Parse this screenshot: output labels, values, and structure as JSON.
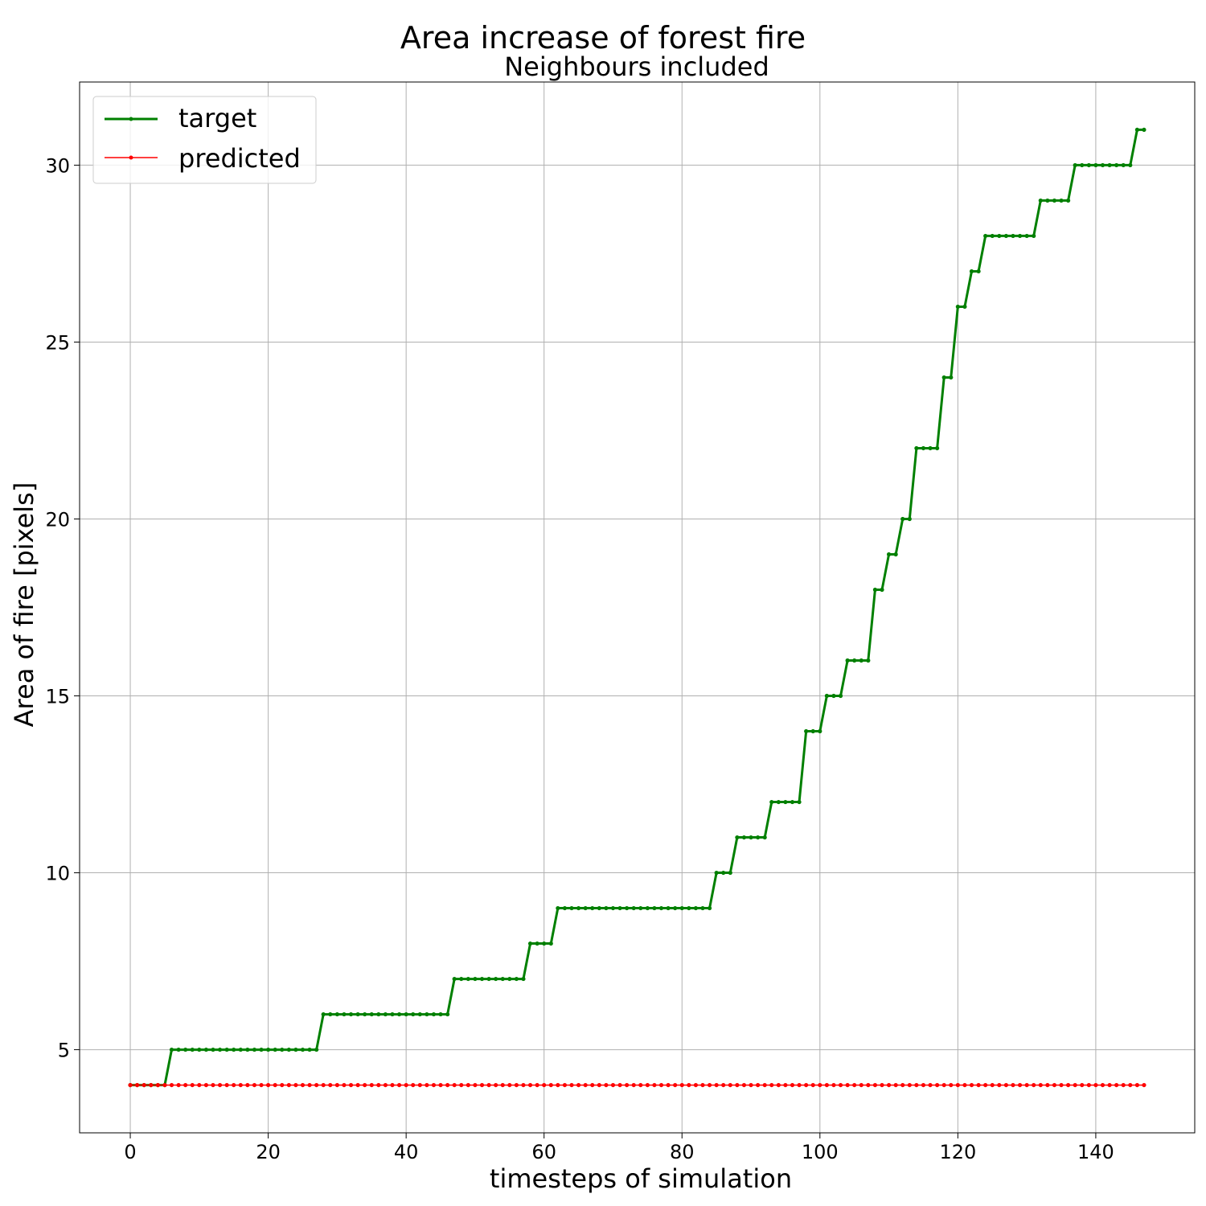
{
  "chart_data": {
    "type": "line",
    "suptitle": "Area increase of forest fire",
    "title": "Neighbours included",
    "xlabel": "timesteps of simulation",
    "ylabel": "Area of fire [pixels]",
    "xlim": [
      -7.35,
      154.35
    ],
    "ylim": [
      2.65,
      32.35
    ],
    "xticks": [
      0,
      20,
      40,
      60,
      80,
      100,
      120,
      140
    ],
    "yticks": [
      5,
      10,
      15,
      20,
      25,
      30
    ],
    "grid": true,
    "legend_position": "upper-left",
    "series": [
      {
        "name": "target",
        "color": "#008000",
        "runs": [
          [
            0,
            5,
            4
          ],
          [
            6,
            27,
            5
          ],
          [
            28,
            46,
            6
          ],
          [
            47,
            57,
            7
          ],
          [
            58,
            61,
            8
          ],
          [
            62,
            84,
            9
          ],
          [
            85,
            87,
            10
          ],
          [
            88,
            92,
            11
          ],
          [
            93,
            97,
            12
          ],
          [
            98,
            100,
            14
          ],
          [
            101,
            103,
            15
          ],
          [
            104,
            107,
            16
          ],
          [
            108,
            109,
            18
          ],
          [
            110,
            111,
            19
          ],
          [
            112,
            113,
            20
          ],
          [
            114,
            117,
            22
          ],
          [
            118,
            119,
            24
          ],
          [
            120,
            121,
            26
          ],
          [
            122,
            123,
            27
          ],
          [
            124,
            131,
            28
          ],
          [
            132,
            136,
            29
          ],
          [
            137,
            145,
            30
          ],
          [
            146,
            147,
            31
          ]
        ]
      },
      {
        "name": "predicted",
        "color": "#ff0000",
        "runs": [
          [
            0,
            147,
            4
          ]
        ]
      }
    ]
  }
}
